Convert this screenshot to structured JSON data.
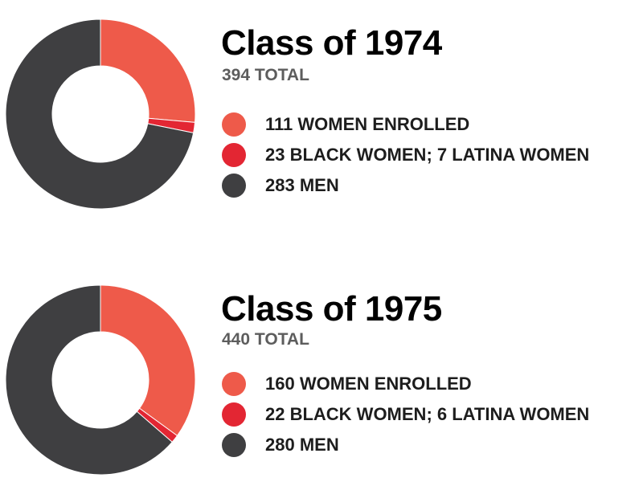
{
  "colors": {
    "women": "#ee5a4a",
    "black_latina": "#e32633",
    "men": "#3f3f41"
  },
  "chart_data": [
    {
      "type": "pie",
      "variant": "donut",
      "title": "Class of 1974",
      "subtitle": "394 TOTAL",
      "total": 394,
      "slices": [
        {
          "key": "women",
          "label": "111 WOMEN ENROLLED",
          "value": 104
        },
        {
          "key": "black_latina",
          "label": "23 BLACK WOMEN; 7 LATINA WOMEN",
          "value": 7
        },
        {
          "key": "men",
          "label": "283 MEN",
          "value": 283
        }
      ],
      "legend": [
        {
          "key": "women",
          "label": "111 WOMEN ENROLLED"
        },
        {
          "key": "black_latina",
          "label": "23 BLACK WOMEN; 7 LATINA WOMEN"
        },
        {
          "key": "men",
          "label": "283 MEN"
        }
      ]
    },
    {
      "type": "pie",
      "variant": "donut",
      "title": "Class of 1975",
      "subtitle": "440 TOTAL",
      "total": 440,
      "slices": [
        {
          "key": "women",
          "label": "160 WOMEN ENROLLED",
          "value": 154
        },
        {
          "key": "black_latina",
          "label": "22 BLACK WOMEN; 6 LATINA WOMEN",
          "value": 6
        },
        {
          "key": "men",
          "label": "280 MEN",
          "value": 280
        }
      ],
      "legend": [
        {
          "key": "women",
          "label": "160 WOMEN ENROLLED"
        },
        {
          "key": "black_latina",
          "label": "22 BLACK WOMEN; 6 LATINA WOMEN"
        },
        {
          "key": "men",
          "label": "280 MEN"
        }
      ]
    }
  ]
}
